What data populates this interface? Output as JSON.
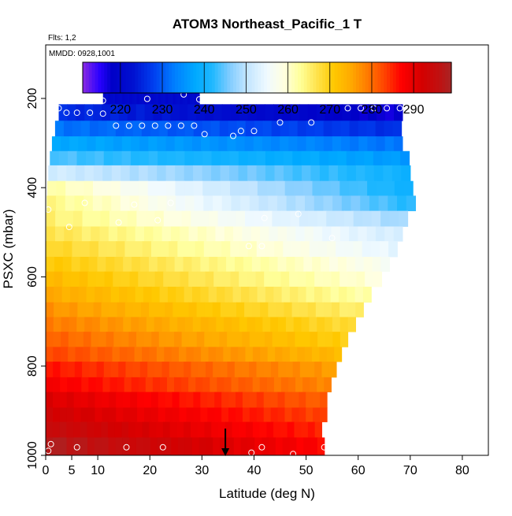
{
  "chart_data": {
    "type": "heatmap",
    "title": "ATOM3 Northeast_Pacific_1 T",
    "flights_label": "Flts: 1,2",
    "date_label": "MMDD: 0928,1001",
    "xlabel": "Latitude (deg N)",
    "ylabel": "PSXC (mbar)",
    "xlim": [
      0,
      85
    ],
    "ylim": [
      1000,
      80
    ],
    "y_reversed": true,
    "grid": false,
    "x_ticks": [
      0,
      5,
      10,
      20,
      30,
      40,
      50,
      60,
      70,
      80
    ],
    "y_ticks": [
      200,
      400,
      600,
      800,
      1000
    ],
    "colorbar": {
      "min": 211,
      "max": 299,
      "ticks": [
        220,
        230,
        240,
        250,
        260,
        270,
        280,
        290
      ],
      "stops": [
        [
          211,
          "#8a2be2"
        ],
        [
          215,
          "#2a00ff"
        ],
        [
          218,
          "#0000c8"
        ],
        [
          223,
          "#0010d0"
        ],
        [
          228,
          "#0040f0"
        ],
        [
          233,
          "#0080ff"
        ],
        [
          238,
          "#00aaff"
        ],
        [
          242,
          "#20b8ff"
        ],
        [
          246,
          "#80ccff"
        ],
        [
          250,
          "#c0e4ff"
        ],
        [
          255,
          "#f0faff"
        ],
        [
          259,
          "#ffffe0"
        ],
        [
          263,
          "#ffff99"
        ],
        [
          267,
          "#ffe24a"
        ],
        [
          271,
          "#ffc800"
        ],
        [
          275,
          "#ffaa00"
        ],
        [
          279,
          "#ff7a00"
        ],
        [
          283,
          "#ff4400"
        ],
        [
          287,
          "#ff0000"
        ],
        [
          292,
          "#d40000"
        ],
        [
          296,
          "#c01010"
        ],
        [
          299,
          "#a82525"
        ]
      ]
    },
    "rows": [
      {
        "p_top": 164,
        "p_bot": 213,
        "lat_start": 11,
        "lat_end": 29.5,
        "t_start": 220,
        "t_end": 221
      },
      {
        "p_top": 213,
        "p_bot": 250,
        "lat_start": 2.5,
        "lat_end": 68.5,
        "t_start": 226,
        "t_end": 217
      },
      {
        "p_top": 250,
        "p_bot": 285,
        "lat_start": 1.8,
        "lat_end": 68.3,
        "t_start": 232,
        "t_end": 226
      },
      {
        "p_top": 285,
        "p_bot": 318,
        "lat_start": 1.2,
        "lat_end": 68.5,
        "t_start": 238,
        "t_end": 232
      },
      {
        "p_top": 318,
        "p_bot": 350,
        "lat_start": 0.8,
        "lat_end": 69.8,
        "t_start": 244,
        "t_end": 236
      },
      {
        "p_top": 350,
        "p_bot": 385,
        "lat_start": 0.5,
        "lat_end": 70.0,
        "t_start": 252,
        "t_end": 240
      },
      {
        "p_top": 385,
        "p_bot": 418,
        "lat_start": 0.3,
        "lat_end": 70.5,
        "t_start": 262,
        "t_end": 240
      },
      {
        "p_top": 418,
        "p_bot": 452,
        "lat_start": 0.2,
        "lat_end": 71.0,
        "t_start": 264,
        "t_end": 242
      },
      {
        "p_top": 452,
        "p_bot": 487,
        "lat_start": 0.1,
        "lat_end": 69.5,
        "t_start": 265,
        "t_end": 248
      },
      {
        "p_top": 487,
        "p_bot": 520,
        "lat_start": 0.1,
        "lat_end": 68.5,
        "t_start": 267,
        "t_end": 252
      },
      {
        "p_top": 520,
        "p_bot": 555,
        "lat_start": 0.0,
        "lat_end": 67.5,
        "t_start": 269,
        "t_end": 254
      },
      {
        "p_top": 555,
        "p_bot": 588,
        "lat_start": 0.0,
        "lat_end": 66.0,
        "t_start": 271,
        "t_end": 257
      },
      {
        "p_top": 588,
        "p_bot": 622,
        "lat_start": 0.0,
        "lat_end": 64.5,
        "t_start": 273,
        "t_end": 259
      },
      {
        "p_top": 622,
        "p_bot": 657,
        "lat_start": 0.0,
        "lat_end": 62.5,
        "t_start": 275,
        "t_end": 262
      },
      {
        "p_top": 657,
        "p_bot": 690,
        "lat_start": 0.0,
        "lat_end": 61.0,
        "t_start": 277,
        "t_end": 265
      },
      {
        "p_top": 690,
        "p_bot": 723,
        "lat_start": 0.0,
        "lat_end": 59.5,
        "t_start": 279,
        "t_end": 268
      },
      {
        "p_top": 723,
        "p_bot": 757,
        "lat_start": 0.0,
        "lat_end": 58.0,
        "t_start": 281,
        "t_end": 270
      },
      {
        "p_top": 757,
        "p_bot": 790,
        "lat_start": 0.0,
        "lat_end": 56.8,
        "t_start": 283,
        "t_end": 273
      },
      {
        "p_top": 790,
        "p_bot": 825,
        "lat_start": 0.0,
        "lat_end": 55.8,
        "t_start": 286,
        "t_end": 276
      },
      {
        "p_top": 825,
        "p_bot": 858,
        "lat_start": 0.0,
        "lat_end": 54.8,
        "t_start": 288,
        "t_end": 278
      },
      {
        "p_top": 858,
        "p_bot": 893,
        "lat_start": 0.0,
        "lat_end": 54.0,
        "t_start": 291,
        "t_end": 281
      },
      {
        "p_top": 893,
        "p_bot": 925,
        "lat_start": 0.0,
        "lat_end": 54.0,
        "t_start": 293,
        "t_end": 283
      },
      {
        "p_top": 925,
        "p_bot": 960,
        "lat_start": 0.0,
        "lat_end": 53.0,
        "t_start": 295,
        "t_end": 285
      },
      {
        "p_top": 960,
        "p_bot": 1000,
        "lat_start": 0.0,
        "lat_end": 53.5,
        "t_start": 298,
        "t_end": 287
      }
    ],
    "sample_points": [
      {
        "lat": 11.0,
        "p": 205
      },
      {
        "lat": 19.5,
        "p": 201
      },
      {
        "lat": 26.5,
        "p": 191
      },
      {
        "lat": 29.5,
        "p": 202
      },
      {
        "lat": 2.5,
        "p": 222
      },
      {
        "lat": 4.0,
        "p": 232
      },
      {
        "lat": 6.0,
        "p": 232
      },
      {
        "lat": 8.5,
        "p": 232
      },
      {
        "lat": 11.0,
        "p": 234
      },
      {
        "lat": 58.0,
        "p": 222
      },
      {
        "lat": 60.5,
        "p": 222
      },
      {
        "lat": 63.0,
        "p": 222
      },
      {
        "lat": 65.5,
        "p": 222
      },
      {
        "lat": 68.0,
        "p": 222
      },
      {
        "lat": 13.5,
        "p": 261
      },
      {
        "lat": 16.0,
        "p": 261
      },
      {
        "lat": 18.5,
        "p": 261
      },
      {
        "lat": 21.0,
        "p": 261
      },
      {
        "lat": 23.5,
        "p": 261
      },
      {
        "lat": 26.0,
        "p": 261
      },
      {
        "lat": 28.5,
        "p": 261
      },
      {
        "lat": 30.5,
        "p": 280
      },
      {
        "lat": 36.0,
        "p": 284
      },
      {
        "lat": 37.5,
        "p": 273
      },
      {
        "lat": 40.0,
        "p": 273
      },
      {
        "lat": 45.0,
        "p": 254
      },
      {
        "lat": 51.0,
        "p": 254
      },
      {
        "lat": 0.5,
        "p": 449
      },
      {
        "lat": 7.5,
        "p": 434
      },
      {
        "lat": 17.0,
        "p": 438
      },
      {
        "lat": 24.0,
        "p": 434
      },
      {
        "lat": 4.5,
        "p": 488
      },
      {
        "lat": 14.0,
        "p": 478
      },
      {
        "lat": 21.5,
        "p": 473
      },
      {
        "lat": 42.0,
        "p": 468
      },
      {
        "lat": 48.5,
        "p": 459
      },
      {
        "lat": 70.5,
        "p": 482
      },
      {
        "lat": 39.0,
        "p": 531
      },
      {
        "lat": 41.5,
        "p": 531
      },
      {
        "lat": 55.0,
        "p": 513
      },
      {
        "lat": 1.0,
        "p": 975
      },
      {
        "lat": 0.5,
        "p": 990
      },
      {
        "lat": 6.0,
        "p": 982
      },
      {
        "lat": 15.5,
        "p": 982
      },
      {
        "lat": 22.5,
        "p": 982
      },
      {
        "lat": 39.5,
        "p": 994
      },
      {
        "lat": 41.5,
        "p": 982
      },
      {
        "lat": 47.5,
        "p": 997
      },
      {
        "lat": 53.5,
        "p": 982
      }
    ],
    "marker": {
      "lat": 34.5,
      "p_from": 940,
      "p_to": 1000
    }
  }
}
